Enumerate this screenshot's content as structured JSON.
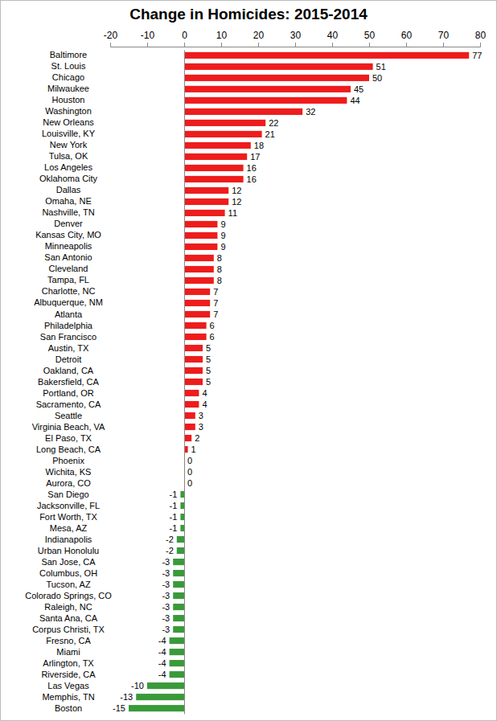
{
  "chart_data": {
    "type": "bar",
    "orientation": "horizontal",
    "title": "Change in Homicides: 2015-2014",
    "categories": [
      "Baltimore",
      "St. Louis",
      "Chicago",
      "Milwaukee",
      "Houston",
      "Washington",
      "New Orleans",
      "Louisville, KY",
      "New York",
      "Tulsa, OK",
      "Los Angeles",
      "Oklahoma City",
      "Dallas",
      "Omaha, NE",
      "Nashville, TN",
      "Denver",
      "Kansas City, MO",
      "Minneapolis",
      "San Antonio",
      "Cleveland",
      "Tampa, FL",
      "Charlotte, NC",
      "Albuquerque, NM",
      "Atlanta",
      "Philadelphia",
      "San Francisco",
      "Austin, TX",
      "Detroit",
      "Oakland, CA",
      "Bakersfield, CA",
      "Portland, OR",
      "Sacramento, CA",
      "Seattle",
      "Virginia Beach, VA",
      "El Paso, TX",
      "Long Beach, CA",
      "Phoenix",
      "Wichita, KS",
      "Aurora, CO",
      "San Diego",
      "Jacksonville, FL",
      "Fort Worth, TX",
      "Mesa, AZ",
      "Indianapolis",
      "Urban Honolulu",
      "San Jose, CA",
      "Columbus, OH",
      "Tucson, AZ",
      "Colorado Springs, CO",
      "Raleigh, NC",
      "Santa Ana, CA",
      "Corpus Christi, TX",
      "Fresno, CA",
      "Miami",
      "Arlington, TX",
      "Riverside, CA",
      "Las Vegas",
      "Memphis, TN",
      "Boston"
    ],
    "values": [
      77,
      51,
      50,
      45,
      44,
      32,
      22,
      21,
      18,
      17,
      16,
      16,
      12,
      12,
      11,
      9,
      9,
      9,
      8,
      8,
      8,
      7,
      7,
      7,
      6,
      6,
      5,
      5,
      5,
      5,
      4,
      4,
      3,
      3,
      2,
      1,
      0,
      0,
      0,
      -1,
      -1,
      -1,
      -1,
      -2,
      -2,
      -3,
      -3,
      -3,
      -3,
      -3,
      -3,
      -3,
      -4,
      -4,
      -4,
      -4,
      -10,
      -13,
      -15
    ],
    "colors": [
      "#ee1c1c",
      "#ee1c1c",
      "#ee1c1c",
      "#ee1c1c",
      "#ee1c1c",
      "#ee1c1c",
      "#ee1c1c",
      "#ee1c1c",
      "#ee1c1c",
      "#ee1c1c",
      "#ee1c1c",
      "#ee1c1c",
      "#ee1c1c",
      "#ee1c1c",
      "#ee1c1c",
      "#ee1c1c",
      "#ee1c1c",
      "#ee1c1c",
      "#ee1c1c",
      "#ee1c1c",
      "#ee1c1c",
      "#ee1c1c",
      "#ee1c1c",
      "#ee1c1c",
      "#ee1c1c",
      "#ee1c1c",
      "#ee1c1c",
      "#ee1c1c",
      "#ee1c1c",
      "#ee1c1c",
      "#ee1c1c",
      "#ee1c1c",
      "#ee1c1c",
      "#ee1c1c",
      "#ee1c1c",
      "#ee1c1c",
      "#ee1c1c",
      "#ee1c1c",
      "#ee1c1c",
      "#3a9a3a",
      "#3a9a3a",
      "#3a9a3a",
      "#3a9a3a",
      "#3a9a3a",
      "#3a9a3a",
      "#3a9a3a",
      "#3a9a3a",
      "#3a9a3a",
      "#3a9a3a",
      "#3a9a3a",
      "#3a9a3a",
      "#3a9a3a",
      "#3a9a3a",
      "#3a9a3a",
      "#3a9a3a",
      "#3a9a3a",
      "#3a9a3a",
      "#3a9a3a",
      "#3a9a3a"
    ],
    "xlim": [
      -20,
      80
    ],
    "xticks": [
      -20,
      -10,
      0,
      10,
      20,
      30,
      40,
      50,
      60,
      70,
      80
    ],
    "data_labels": true,
    "grid": false
  }
}
